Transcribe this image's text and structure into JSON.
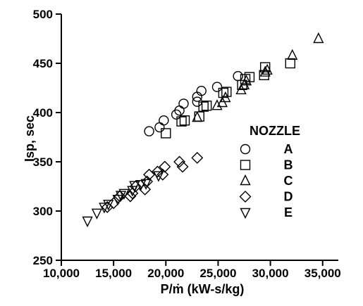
{
  "chart_data": {
    "type": "scatter",
    "title": "",
    "xlabel": "P/ṁ (kW-s/kg)",
    "ylabel": "Isp, sec",
    "xlim": [
      10000,
      36500
    ],
    "ylim": [
      250,
      500
    ],
    "x_ticks": [
      10000,
      15000,
      20000,
      25000,
      30000,
      35000
    ],
    "x_tick_labels": [
      "10,000",
      "15,000",
      "20,000",
      "25,000",
      "30,000",
      "35,000"
    ],
    "y_ticks": [
      250,
      300,
      350,
      400,
      450,
      500
    ],
    "y_tick_labels": [
      "250",
      "300",
      "350",
      "400",
      "450",
      "500"
    ],
    "grid": false,
    "legend_title": "NOZZLE",
    "legend_position": "right-middle",
    "series": [
      {
        "name": "A",
        "marker": "circle",
        "points": [
          [
            18400,
            381
          ],
          [
            19400,
            385
          ],
          [
            19800,
            392
          ],
          [
            21000,
            398
          ],
          [
            21300,
            402
          ],
          [
            21700,
            409
          ],
          [
            23000,
            411
          ],
          [
            23000,
            416
          ],
          [
            23400,
            422
          ],
          [
            24900,
            426
          ],
          [
            26900,
            437
          ]
        ]
      },
      {
        "name": "B",
        "marker": "square",
        "points": [
          [
            20000,
            379
          ],
          [
            21500,
            391
          ],
          [
            21800,
            392
          ],
          [
            23200,
            396
          ],
          [
            23600,
            406
          ],
          [
            23900,
            407
          ],
          [
            25500,
            420
          ],
          [
            25800,
            421
          ],
          [
            27300,
            428
          ],
          [
            27600,
            434
          ],
          [
            28000,
            436
          ],
          [
            29400,
            438
          ],
          [
            29500,
            446
          ],
          [
            31900,
            450
          ]
        ]
      },
      {
        "name": "C",
        "marker": "triangle-up",
        "points": [
          [
            23000,
            395
          ],
          [
            24900,
            407
          ],
          [
            25400,
            410
          ],
          [
            25700,
            415
          ],
          [
            27200,
            423
          ],
          [
            27500,
            428
          ],
          [
            27700,
            432
          ],
          [
            29500,
            441
          ],
          [
            29700,
            443
          ],
          [
            32100,
            458
          ],
          [
            34600,
            475
          ]
        ]
      },
      {
        "name": "D",
        "marker": "diamond",
        "points": [
          [
            14400,
            304
          ],
          [
            15000,
            308
          ],
          [
            15600,
            315
          ],
          [
            16600,
            315
          ],
          [
            16800,
            318
          ],
          [
            17100,
            325
          ],
          [
            18000,
            322
          ],
          [
            18200,
            330
          ],
          [
            18400,
            337
          ],
          [
            19200,
            340
          ],
          [
            19700,
            337
          ],
          [
            19900,
            345
          ],
          [
            21300,
            350
          ],
          [
            21600,
            345
          ],
          [
            23000,
            354
          ]
        ]
      },
      {
        "name": "E",
        "marker": "triangle-down",
        "points": [
          [
            12500,
            290
          ],
          [
            13400,
            298
          ],
          [
            14100,
            304
          ],
          [
            14500,
            307
          ],
          [
            15400,
            312
          ],
          [
            15700,
            316
          ],
          [
            16000,
            318
          ],
          [
            16800,
            321
          ],
          [
            17000,
            326
          ],
          [
            17600,
            327
          ],
          [
            18100,
            328
          ],
          [
            19300,
            336
          ]
        ]
      }
    ]
  }
}
